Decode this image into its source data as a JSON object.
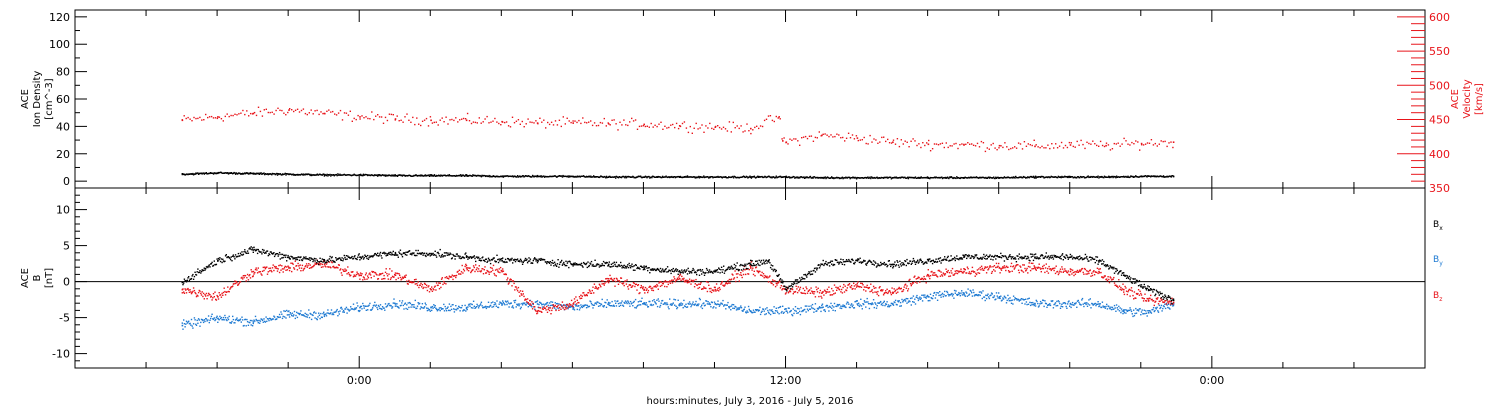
{
  "chart_data": [
    {
      "type": "scatter",
      "panel": "plasma",
      "ylabel_lines": [
        "ACE",
        "Ion Density",
        "[cm^-3]"
      ],
      "y2label_lines": [
        "ACE",
        "Velocity",
        "[km/s]"
      ],
      "ylim": [
        -5,
        125
      ],
      "y_ticks": [
        "0",
        "20",
        "40",
        "60",
        "80",
        "100",
        "120"
      ],
      "y_tick_values": [
        0,
        20,
        40,
        60,
        80,
        100,
        120
      ],
      "y2lim": [
        350,
        610
      ],
      "y2_ticks": [
        "350",
        "400",
        "450",
        "500",
        "550",
        "600"
      ],
      "y2_tick_values": [
        350,
        400,
        450,
        500,
        550,
        600
      ],
      "series": [
        {
          "axis": "left",
          "color": "#000000",
          "x_hours": [
            -5,
            -4,
            -3,
            -2,
            -1,
            0,
            1,
            2,
            3,
            4,
            5,
            6,
            7,
            8,
            9,
            10,
            11,
            12,
            13,
            14,
            15,
            16,
            17,
            18,
            19,
            20,
            21,
            22,
            22.9
          ],
          "values": [
            5.5,
            6.5,
            6,
            5.5,
            5,
            5,
            4.5,
            4.5,
            4.5,
            4,
            4,
            4,
            3.5,
            3.5,
            3.5,
            3.5,
            3.5,
            3.5,
            3,
            3,
            3,
            3,
            3,
            3,
            3.5,
            3.5,
            3.5,
            4,
            4
          ]
        },
        {
          "axis": "right",
          "color": "#e8141a",
          "x_hours": [
            -5,
            -4,
            -3,
            -2,
            -1,
            0,
            1,
            2,
            3,
            4,
            5,
            6,
            7,
            8,
            9,
            10,
            11,
            11.8,
            11.9,
            12,
            13,
            14,
            15,
            16,
            17,
            18,
            19,
            20,
            21,
            22,
            22.9
          ],
          "values": [
            450,
            455,
            460,
            465,
            460,
            455,
            452,
            450,
            450,
            448,
            446,
            446,
            445,
            444,
            442,
            440,
            438,
            455,
            420,
            418,
            428,
            424,
            418,
            415,
            414,
            413,
            412,
            414,
            413,
            416,
            418
          ]
        }
      ]
    },
    {
      "type": "scatter",
      "panel": "magnetic-field",
      "ylabel_lines": [
        "ACE",
        "B",
        "[nT]"
      ],
      "ylim": [
        -12,
        13
      ],
      "y_ticks": [
        "10",
        "5",
        "0",
        "-5",
        "-10"
      ],
      "y_tick_values": [
        10,
        5,
        0,
        -5,
        -10
      ],
      "legend_placement": "right",
      "series": [
        {
          "name": "Bx",
          "legend_main": "B",
          "legend_sub": "x",
          "color": "#000000",
          "x_hours": [
            -5,
            -4,
            -3,
            -2,
            -1,
            0,
            1,
            2,
            3,
            4,
            5,
            6,
            7,
            8,
            9,
            10,
            11,
            11.5,
            12,
            13,
            14,
            15,
            16,
            17,
            18,
            19,
            20,
            20.8,
            21.5,
            22.2,
            22.9
          ],
          "values": [
            0,
            3,
            4.5,
            3.5,
            3,
            3.5,
            4,
            4,
            3.5,
            3,
            3,
            2.5,
            2.5,
            2,
            1.5,
            1.5,
            2.5,
            3,
            -1,
            2.5,
            3,
            2.5,
            3,
            3.5,
            3.5,
            3.5,
            3.5,
            3,
            1,
            -1,
            -2.5
          ]
        },
        {
          "name": "By",
          "legend_main": "B",
          "legend_sub": "y",
          "color": "#1e7ad2",
          "x_hours": [
            -5,
            -4,
            -3,
            -2,
            -1,
            0,
            1,
            2,
            3,
            4,
            5,
            6,
            7,
            8,
            9,
            10,
            11,
            12,
            13,
            14,
            15,
            16,
            17,
            18,
            19,
            20,
            20.8,
            21.5,
            22.2,
            22.9
          ],
          "values": [
            -6,
            -5,
            -5.5,
            -4.5,
            -4.5,
            -3.5,
            -3,
            -3.5,
            -3.5,
            -3,
            -3,
            -3.5,
            -3,
            -3,
            -3,
            -3,
            -4,
            -4,
            -3.5,
            -3,
            -3,
            -2,
            -1.5,
            -2,
            -3,
            -3,
            -3,
            -4,
            -4.2,
            -3
          ]
        },
        {
          "name": "Bz",
          "legend_main": "B",
          "legend_sub": "z",
          "color": "#e8141a",
          "x_hours": [
            -5,
            -4,
            -3,
            -2,
            -1,
            0,
            1,
            2,
            3,
            4,
            5,
            6,
            7,
            8,
            9,
            10,
            11,
            12,
            13,
            14,
            15,
            16,
            17,
            18,
            19,
            20,
            20.8,
            21.5,
            22.2,
            22.9
          ],
          "values": [
            -1,
            -2,
            1.5,
            2,
            2.5,
            1,
            1,
            -1,
            2,
            1.5,
            -4,
            -3,
            0.5,
            -1,
            0.5,
            -1,
            2,
            -1,
            -1.5,
            -0.5,
            -1.5,
            1,
            1.5,
            2,
            2,
            1.5,
            1.5,
            -1,
            -2.5,
            -2.8
          ]
        }
      ]
    }
  ],
  "x_axis": {
    "title": "hours:minutes, July  3, 2016 - July  5, 2016",
    "range_hours": [
      -8,
      30
    ],
    "tick_labels": [
      "0:00",
      "12:00",
      "0:00"
    ],
    "tick_hours": [
      0,
      12,
      24
    ]
  }
}
